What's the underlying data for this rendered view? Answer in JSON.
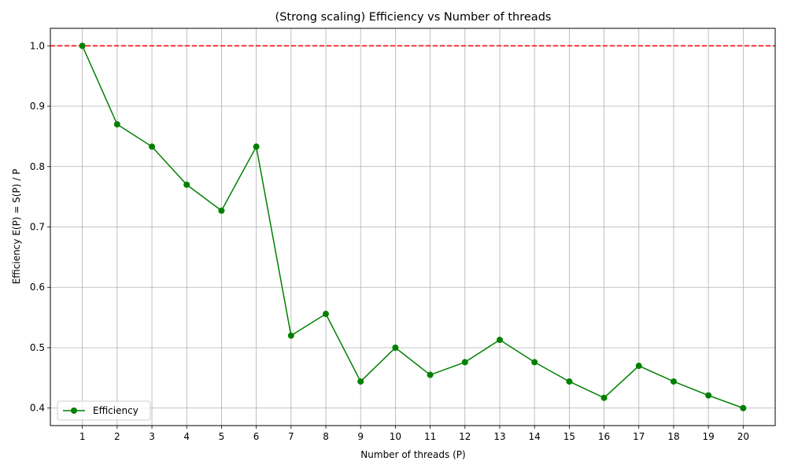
{
  "chart_data": {
    "type": "line",
    "title": "(Strong scaling) Efficiency vs Number of threads",
    "xlabel": "Number of threads (P)",
    "ylabel": "Efficiency E(P) = S(P) / P",
    "x": [
      1,
      2,
      3,
      4,
      5,
      6,
      7,
      8,
      9,
      10,
      11,
      12,
      13,
      14,
      15,
      16,
      17,
      18,
      19,
      20
    ],
    "xlim": [
      0.08,
      20.92
    ],
    "ylim": [
      0.371,
      1.029
    ],
    "xticks": [
      "1",
      "2",
      "3",
      "4",
      "5",
      "6",
      "7",
      "8",
      "9",
      "10",
      "11",
      "12",
      "13",
      "14",
      "15",
      "16",
      "17",
      "18",
      "19",
      "20"
    ],
    "yticks": [
      "0.4",
      "0.5",
      "0.6",
      "0.7",
      "0.8",
      "0.9",
      "1.0"
    ],
    "ytick_values": [
      0.4,
      0.5,
      0.6,
      0.7,
      0.8,
      0.9,
      1.0
    ],
    "grid": true,
    "legend_position": "lower-left",
    "series": [
      {
        "name": "Efficiency",
        "color": "#008000",
        "marker": "circle",
        "values": [
          1.0,
          0.87,
          0.833,
          0.77,
          0.727,
          0.833,
          0.52,
          0.556,
          0.444,
          0.5,
          0.455,
          0.476,
          0.513,
          0.476,
          0.444,
          0.417,
          0.47,
          0.444,
          0.421,
          0.4
        ]
      }
    ],
    "reference_line": {
      "y": 1.0,
      "color": "#ff0000",
      "style": "dashed"
    }
  }
}
